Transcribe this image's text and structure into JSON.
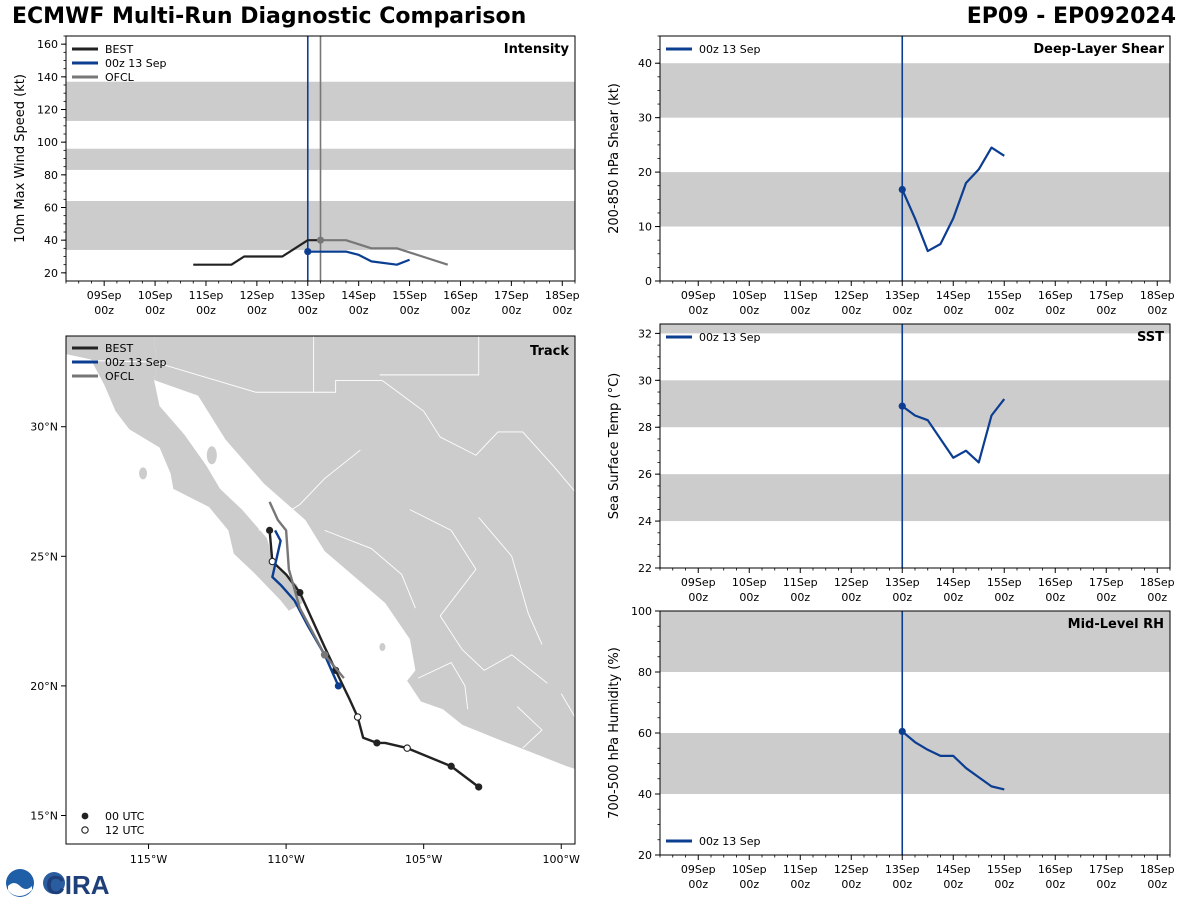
{
  "header": {
    "title": "ECMWF Multi-Run Diagnostic Comparison",
    "storm_id": "EP09 - EP092024"
  },
  "colors": {
    "best": "#222222",
    "run": "#0b3d91",
    "ofcl": "#777777",
    "band": "#cccccc",
    "land": "#cccccc",
    "ocean": "#ffffff"
  },
  "time_axis": {
    "tick_labels": [
      [
        "09Sep",
        "00z"
      ],
      [
        "10Sep",
        "00z"
      ],
      [
        "11Sep",
        "00z"
      ],
      [
        "12Sep",
        "00z"
      ],
      [
        "13Sep",
        "00z"
      ],
      [
        "14Sep",
        "00z"
      ],
      [
        "15Sep",
        "00z"
      ],
      [
        "16Sep",
        "00z"
      ],
      [
        "17Sep",
        "00z"
      ],
      [
        "18Sep",
        "00z"
      ]
    ],
    "range_days_from_09Sep00z": [
      -0.75,
      9.25
    ],
    "init_day": 4.0,
    "ofcl_init_day": 4.25
  },
  "logo": {
    "text": "CIRA"
  },
  "chart_data": [
    {
      "id": "intensity",
      "type": "line",
      "title": "Intensity",
      "ylabel": "10m Max Wind Speed (kt)",
      "ylim": [
        15,
        165
      ],
      "yticks": [
        20,
        40,
        60,
        80,
        100,
        120,
        140,
        160
      ],
      "bands": [
        [
          34,
          64
        ],
        [
          83,
          96
        ],
        [
          113,
          137
        ]
      ],
      "legend": [
        "BEST",
        "00z 13 Sep",
        "OFCL"
      ],
      "series": [
        {
          "name": "BEST",
          "x": [
            "10Sep18z",
            "11Sep00z",
            "11Sep12z",
            "11Sep18z",
            "12Sep00z",
            "12Sep12z",
            "13Sep00z",
            "13Sep06z"
          ],
          "y": [
            25,
            25,
            25,
            30,
            30,
            30,
            40,
            40
          ]
        },
        {
          "name": "00z 13 Sep",
          "x": [
            "13Sep00z",
            "13Sep06z",
            "13Sep12z",
            "13Sep18z",
            "14Sep00z",
            "14Sep06z",
            "14Sep18z",
            "15Sep00z"
          ],
          "y": [
            33,
            33,
            33,
            33,
            31,
            27,
            25,
            28
          ]
        },
        {
          "name": "OFCL",
          "x": [
            "13Sep06z",
            "13Sep18z",
            "14Sep06z",
            "14Sep18z",
            "15Sep06z",
            "15Sep18z"
          ],
          "y": [
            40,
            40,
            35,
            35,
            30,
            25
          ]
        }
      ]
    },
    {
      "id": "shear",
      "type": "line",
      "title": "Deep-Layer Shear",
      "ylabel": "200-850 hPa Shear (kt)",
      "ylim": [
        0,
        45
      ],
      "yticks": [
        0,
        10,
        20,
        30,
        40
      ],
      "bands": [
        [
          10,
          20
        ],
        [
          30,
          40
        ]
      ],
      "legend": [
        "00z 13 Sep"
      ],
      "series": [
        {
          "name": "00z 13 Sep",
          "x": [
            "13Sep00z",
            "13Sep06z",
            "13Sep12z",
            "13Sep18z",
            "14Sep00z",
            "14Sep06z",
            "14Sep12z",
            "14Sep18z",
            "15Sep00z"
          ],
          "y": [
            16.8,
            11.5,
            5.5,
            6.8,
            11.5,
            18,
            20.5,
            24.5,
            23
          ]
        }
      ]
    },
    {
      "id": "sst",
      "type": "line",
      "title": "SST",
      "ylabel": "Sea Surface Temp (°C)",
      "ylim": [
        22,
        32.4
      ],
      "yticks": [
        22,
        24,
        26,
        28,
        30,
        32
      ],
      "bands": [
        [
          24,
          26
        ],
        [
          28,
          30
        ],
        [
          32,
          33
        ]
      ],
      "legend": [
        "00z 13 Sep"
      ],
      "series": [
        {
          "name": "00z 13 Sep",
          "x": [
            "13Sep00z",
            "13Sep06z",
            "13Sep12z",
            "13Sep18z",
            "14Sep00z",
            "14Sep06z",
            "14Sep12z",
            "14Sep18z",
            "15Sep00z"
          ],
          "y": [
            28.9,
            28.5,
            28.3,
            27.5,
            26.7,
            27.0,
            26.5,
            28.5,
            29.2
          ]
        }
      ]
    },
    {
      "id": "rh",
      "type": "line",
      "title": "Mid-Level RH",
      "ylabel": "700-500 hPa Humidity (%)",
      "ylim": [
        20,
        100
      ],
      "yticks": [
        20,
        40,
        60,
        80,
        100
      ],
      "bands": [
        [
          40,
          60
        ],
        [
          80,
          100
        ]
      ],
      "legend": [
        "00z 13 Sep"
      ],
      "series": [
        {
          "name": "00z 13 Sep",
          "x": [
            "13Sep00z",
            "13Sep06z",
            "13Sep12z",
            "13Sep18z",
            "14Sep00z",
            "14Sep06z",
            "14Sep12z",
            "14Sep18z",
            "15Sep00z"
          ],
          "y": [
            60.5,
            57,
            54.5,
            52.5,
            52.5,
            48.5,
            45.5,
            42.5,
            41.5
          ]
        }
      ]
    },
    {
      "id": "track",
      "type": "scatter",
      "title": "Track",
      "xlim_lon": [
        -118,
        -99.5
      ],
      "ylim_lat": [
        13.9,
        33.5
      ],
      "xticks": [
        [
          -115,
          "115°W"
        ],
        [
          -110,
          "110°W"
        ],
        [
          -105,
          "105°W"
        ],
        [
          -100,
          "100°W"
        ]
      ],
      "yticks": [
        [
          15,
          "15°N"
        ],
        [
          20,
          "20°N"
        ],
        [
          25,
          "25°N"
        ],
        [
          30,
          "30°N"
        ]
      ],
      "legend": [
        "BEST",
        "00z 13 Sep",
        "OFCL"
      ],
      "marker_legend": [
        "00 UTC",
        "12 UTC"
      ],
      "series": [
        {
          "name": "BEST",
          "lon": [
            -103.0,
            -104.0,
            -105.6,
            -106.4,
            -106.7,
            -107.2,
            -107.4,
            -107.7,
            -108.2,
            -108.6,
            -109.5,
            -110.0,
            -110.5,
            -110.6
          ],
          "lat": [
            16.1,
            16.9,
            17.6,
            17.8,
            17.8,
            18.0,
            18.8,
            19.5,
            20.6,
            21.5,
            23.6,
            24.3,
            24.8,
            26.0
          ],
          "marks": [
            0,
            0,
            1,
            -1,
            0,
            -1,
            1,
            -1,
            0,
            -1,
            0,
            -1,
            1,
            0
          ]
        },
        {
          "name": "00z 13 Sep",
          "lon": [
            -108.1,
            -108.6,
            -109.2,
            -109.7,
            -110.2,
            -110.5,
            -110.2,
            -110.4
          ],
          "lat": [
            20.0,
            21.2,
            22.3,
            23.3,
            23.9,
            24.2,
            25.6,
            26.0
          ],
          "marks": [
            0,
            -1,
            -1,
            -1,
            -1,
            -1,
            -1,
            -1
          ]
        },
        {
          "name": "OFCL",
          "lon": [
            -107.9,
            -108.6,
            -109.5,
            -109.9,
            -110.0,
            -110.3,
            -110.6
          ],
          "lat": [
            20.3,
            21.2,
            23.0,
            24.5,
            26.0,
            26.4,
            27.1
          ],
          "marks": [
            -1,
            2,
            -1,
            -1,
            -1,
            -1,
            -1
          ]
        }
      ]
    }
  ]
}
